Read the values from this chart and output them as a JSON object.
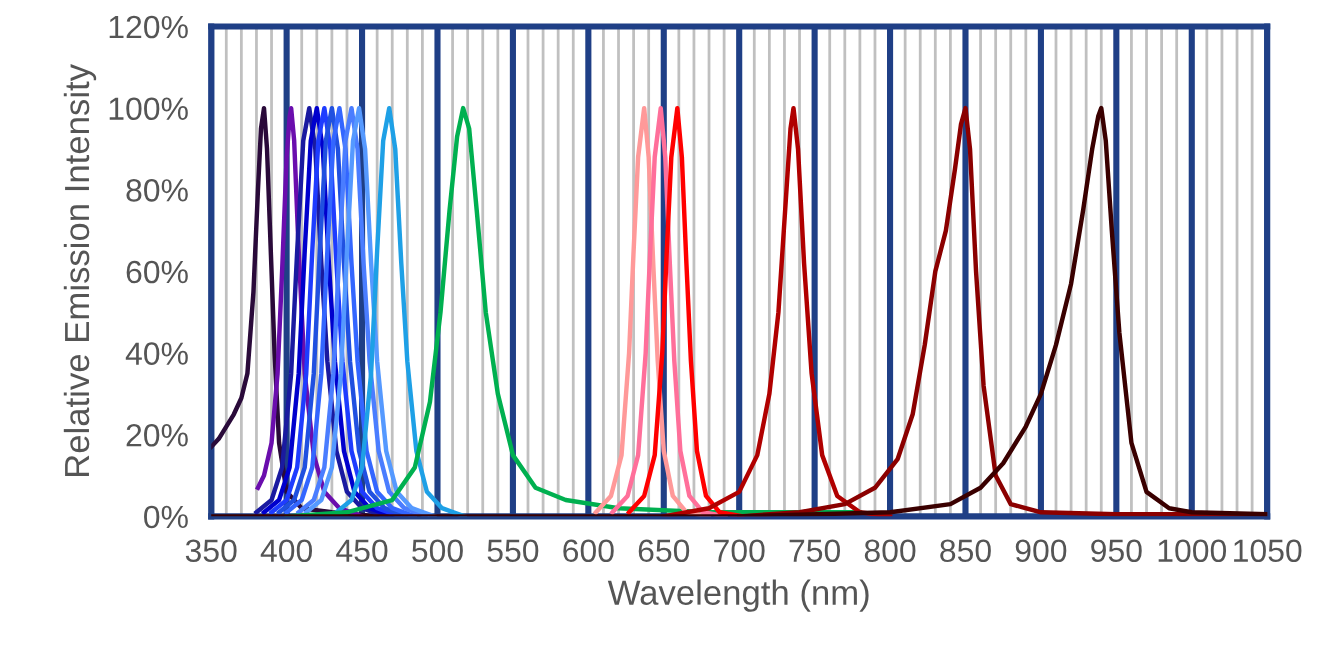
{
  "chart_data": {
    "type": "line",
    "xlabel": "Wavelength (nm)",
    "ylabel": "Relative Emission Intensity",
    "xlim": [
      350,
      1050
    ],
    "xticks": [
      350,
      400,
      450,
      500,
      550,
      600,
      650,
      700,
      750,
      800,
      850,
      900,
      950,
      1000,
      1050
    ],
    "ylim": [
      0,
      120
    ],
    "yticks": [
      {
        "value": 0,
        "label": "0%"
      },
      {
        "value": 20,
        "label": "20%"
      },
      {
        "value": 40,
        "label": "40%"
      },
      {
        "value": 60,
        "label": "60%"
      },
      {
        "value": 80,
        "label": "80%"
      },
      {
        "value": 100,
        "label": "100%"
      },
      {
        "value": 120,
        "label": "120%"
      }
    ],
    "grid": "x",
    "marker": "none",
    "line_style": "solid",
    "series": [
      {
        "color": "#2a0a3a",
        "x": [
          350,
          355,
          360,
          365,
          370,
          374,
          378,
          381,
          383,
          385,
          387,
          389,
          392,
          395,
          400,
          410,
          430,
          460
        ],
        "values": [
          17,
          19,
          22,
          25,
          29,
          35,
          55,
          80,
          95,
          100,
          90,
          70,
          40,
          18,
          6,
          2,
          1,
          0
        ]
      },
      {
        "color": "#6a0dad",
        "x": [
          381,
          385,
          390,
          394,
          397,
          400,
          402,
          403,
          405,
          408,
          412,
          418,
          425,
          435,
          450
        ],
        "values": [
          7,
          10,
          18,
          35,
          60,
          88,
          98,
          100,
          92,
          65,
          35,
          15,
          6,
          2,
          0
        ]
      },
      {
        "color": "#1a1aa0",
        "x": [
          380,
          390,
          397,
          403,
          407,
          411,
          415,
          419,
          423,
          427,
          433,
          440,
          450,
          465
        ],
        "values": [
          1,
          4,
          12,
          35,
          65,
          92,
          100,
          90,
          62,
          38,
          16,
          6,
          2,
          0
        ]
      },
      {
        "color": "#0000cd",
        "x": [
          385,
          395,
          402,
          408,
          412,
          416,
          420,
          424,
          428,
          432,
          438,
          445,
          455,
          470
        ],
        "values": [
          1,
          4,
          12,
          35,
          65,
          92,
          100,
          90,
          62,
          38,
          16,
          6,
          2,
          0
        ]
      },
      {
        "color": "#1e3cff",
        "x": [
          390,
          400,
          407,
          413,
          417,
          421,
          425,
          429,
          433,
          437,
          443,
          450,
          460,
          475
        ],
        "values": [
          1,
          4,
          12,
          35,
          65,
          92,
          100,
          90,
          62,
          38,
          16,
          6,
          2,
          0
        ]
      },
      {
        "color": "#2050e0",
        "x": [
          395,
          405,
          412,
          418,
          422,
          426,
          430,
          434,
          438,
          442,
          448,
          455,
          465,
          480
        ],
        "values": [
          1,
          4,
          12,
          35,
          65,
          92,
          100,
          90,
          62,
          38,
          16,
          6,
          2,
          0
        ]
      },
      {
        "color": "#3366ff",
        "x": [
          400,
          410,
          417,
          423,
          427,
          431,
          435,
          439,
          443,
          447,
          453,
          460,
          470,
          485
        ],
        "values": [
          1,
          4,
          12,
          35,
          65,
          92,
          100,
          90,
          62,
          38,
          16,
          6,
          2,
          0
        ]
      },
      {
        "color": "#4a7dff",
        "x": [
          408,
          418,
          425,
          431,
          435,
          439,
          443,
          447,
          451,
          455,
          461,
          468,
          478,
          493
        ],
        "values": [
          1,
          4,
          12,
          35,
          65,
          92,
          100,
          90,
          62,
          38,
          16,
          6,
          2,
          0
        ]
      },
      {
        "color": "#5599ff",
        "x": [
          413,
          423,
          430,
          436,
          440,
          444,
          448,
          452,
          456,
          460,
          466,
          473,
          483,
          498
        ],
        "values": [
          1,
          4,
          12,
          35,
          65,
          92,
          100,
          90,
          62,
          38,
          16,
          6,
          2,
          0
        ]
      },
      {
        "color": "#1ea0e6",
        "x": [
          433,
          443,
          450,
          456,
          460,
          464,
          468,
          472,
          476,
          480,
          486,
          493,
          503,
          518
        ],
        "values": [
          1,
          4,
          12,
          35,
          65,
          92,
          100,
          90,
          62,
          38,
          16,
          6,
          2,
          0
        ]
      },
      {
        "color": "#00b050",
        "x": [
          400,
          440,
          470,
          485,
          495,
          502,
          508,
          513,
          517,
          521,
          526,
          532,
          540,
          550,
          565,
          585,
          620,
          680,
          780
        ],
        "values": [
          0,
          1,
          4,
          12,
          28,
          50,
          75,
          93,
          100,
          95,
          75,
          50,
          30,
          15,
          7,
          4,
          2,
          1,
          1
        ]
      },
      {
        "color": "#ff9999",
        "x": [
          605,
          615,
          622,
          627,
          630,
          633,
          637,
          640,
          643,
          646,
          650,
          656,
          665,
          680
        ],
        "values": [
          1,
          5,
          15,
          40,
          65,
          88,
          100,
          88,
          62,
          38,
          16,
          5,
          1,
          0
        ]
      },
      {
        "color": "#ff6f9a",
        "x": [
          616,
          626,
          633,
          638,
          641,
          644,
          648,
          651,
          654,
          657,
          661,
          667,
          676,
          691
        ],
        "values": [
          1,
          5,
          15,
          40,
          65,
          88,
          100,
          88,
          62,
          38,
          16,
          5,
          1,
          0
        ]
      },
      {
        "color": "#ff0000",
        "x": [
          627,
          637,
          644,
          649,
          652,
          655,
          659,
          662,
          665,
          668,
          672,
          678,
          687,
          702
        ],
        "values": [
          1,
          5,
          15,
          40,
          65,
          88,
          100,
          88,
          62,
          38,
          16,
          5,
          1,
          0
        ]
      },
      {
        "color": "#b00000",
        "x": [
          650,
          680,
          700,
          712,
          720,
          726,
          731,
          734,
          736,
          739,
          743,
          748,
          755,
          765,
          780,
          800
        ],
        "values": [
          0,
          2,
          6,
          15,
          30,
          50,
          78,
          95,
          100,
          90,
          62,
          35,
          15,
          5,
          1,
          0
        ]
      },
      {
        "color": "#8b0000",
        "x": [
          700,
          740,
          770,
          790,
          805,
          815,
          823,
          830,
          837,
          843,
          847,
          850,
          853,
          857,
          862,
          870,
          880,
          900,
          950,
          1050
        ],
        "values": [
          0,
          1,
          3,
          7,
          14,
          25,
          42,
          60,
          70,
          85,
          96,
          100,
          90,
          60,
          32,
          10,
          3,
          1,
          0.5,
          0.5
        ]
      },
      {
        "color": "#3a0000",
        "x": [
          350,
          700,
          800,
          840,
          860,
          875,
          890,
          900,
          910,
          920,
          928,
          934,
          938,
          940,
          943,
          947,
          952,
          960,
          970,
          985,
          1000,
          1050
        ],
        "values": [
          0,
          0,
          1,
          3,
          7,
          13,
          22,
          30,
          42,
          57,
          75,
          90,
          98,
          100,
          92,
          70,
          45,
          18,
          6,
          2,
          1,
          0.5
        ]
      }
    ]
  }
}
